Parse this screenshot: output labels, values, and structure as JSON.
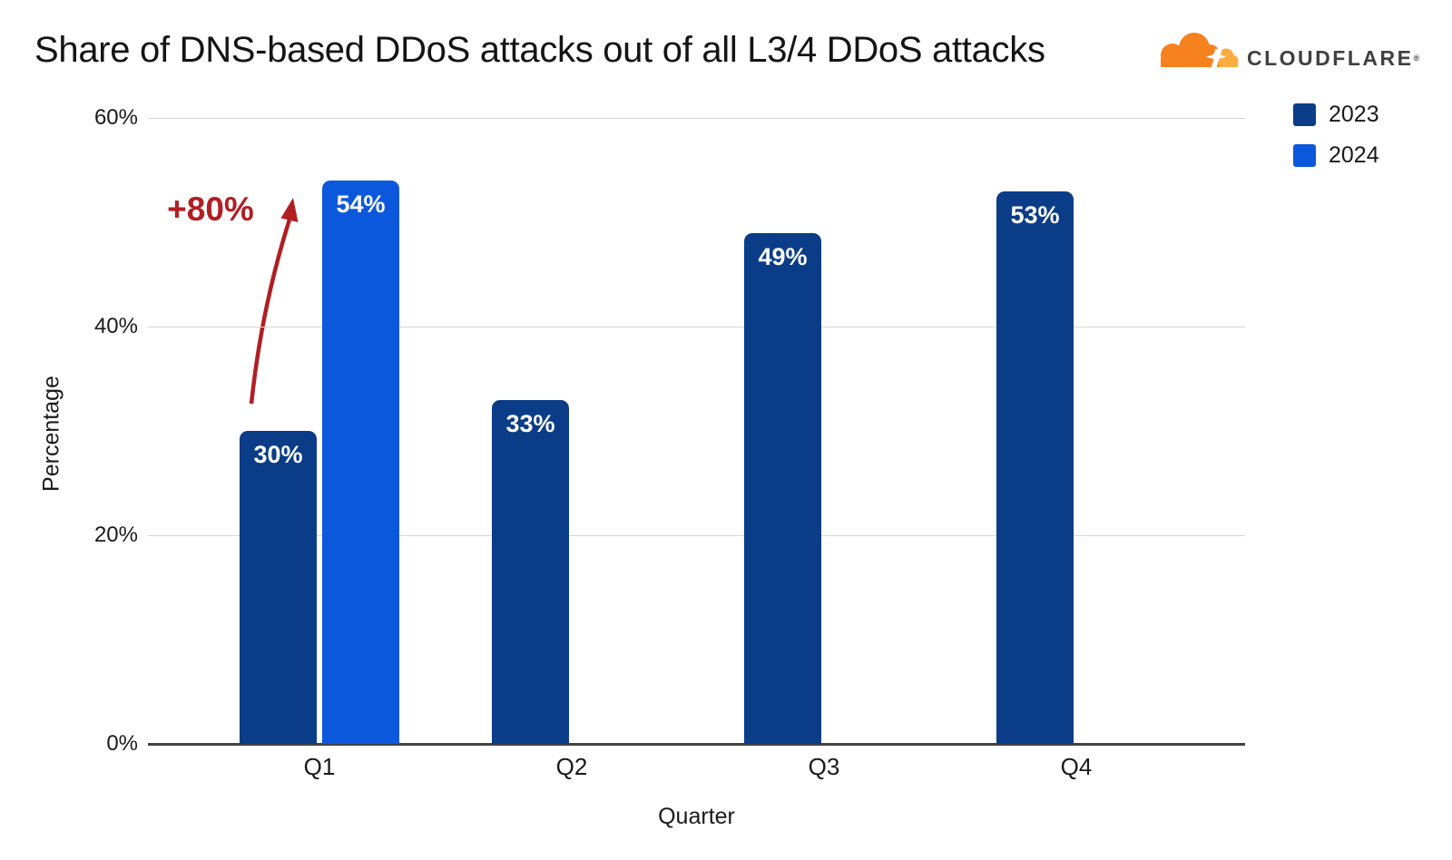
{
  "title": "Share of DNS-based DDoS attacks out of all L3/4 DDoS attacks",
  "brand": {
    "name": "CLOUDFLARE",
    "mark": "®",
    "cloud_main_color": "#f6821f",
    "cloud_light_color": "#fbad41",
    "text_color": "#404041"
  },
  "legend": {
    "position": "top-right",
    "items": [
      {
        "label": "2023",
        "color": "#0b3c87"
      },
      {
        "label": "2024",
        "color": "#0b58dc"
      }
    ]
  },
  "annotation": {
    "text": "+80%",
    "color": "#b01f24",
    "meaning": "increase from Q1 2023 bar to Q1 2024 bar"
  },
  "axes": {
    "x_title": "Quarter",
    "y_title": "Percentage"
  },
  "chart_data": {
    "type": "bar",
    "title": "Share of DNS-based DDoS attacks out of all L3/4 DDoS attacks",
    "xlabel": "Quarter",
    "ylabel": "Percentage",
    "categories": [
      "Q1",
      "Q2",
      "Q3",
      "Q4"
    ],
    "series": [
      {
        "name": "2023",
        "color": "#0b3c87",
        "values": [
          30,
          33,
          49,
          53
        ]
      },
      {
        "name": "2024",
        "color": "#0b58dc",
        "values": [
          54,
          null,
          null,
          null
        ]
      }
    ],
    "bar_label_format": "{v}%",
    "ylim": [
      0,
      60
    ],
    "ytick_values": [
      0,
      20,
      40,
      60
    ],
    "ytick_labels": [
      "0%",
      "20%",
      "40%",
      "60%"
    ],
    "grid": true,
    "legend_position": "top-right",
    "annotation": {
      "text": "+80%",
      "category": "Q1",
      "from_series": "2023",
      "to_series": "2024"
    }
  }
}
